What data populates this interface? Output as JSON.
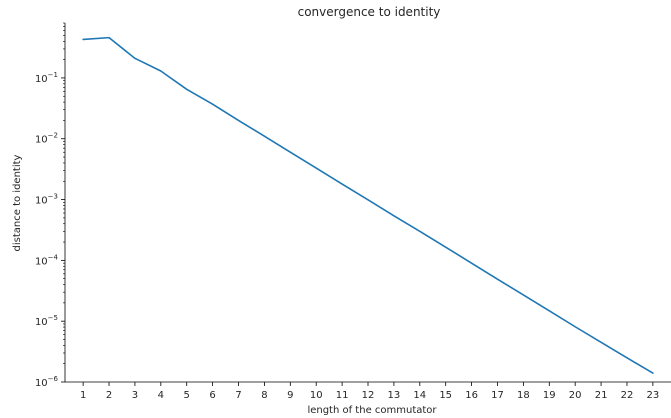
{
  "chart_data": {
    "type": "line",
    "title": "convergence to identity",
    "xlabel": "length of the commutator",
    "ylabel": "distance to identity",
    "yscale": "log",
    "ylim": [
      1e-06,
      0.8
    ],
    "xlim": [
      0.3,
      23.7
    ],
    "grid": false,
    "legend": "none",
    "x_ticks": [
      "1",
      "2",
      "3",
      "4",
      "5",
      "6",
      "7",
      "8",
      "9",
      "10",
      "11",
      "12",
      "13",
      "14",
      "15",
      "16",
      "17",
      "18",
      "19",
      "20",
      "21",
      "22",
      "23"
    ],
    "y_ticks": [
      {
        "value": 0.1,
        "base": "10",
        "exp": "−1"
      },
      {
        "value": 0.01,
        "base": "10",
        "exp": "−2"
      },
      {
        "value": 0.001,
        "base": "10",
        "exp": "−3"
      },
      {
        "value": 0.0001,
        "base": "10",
        "exp": "−4"
      },
      {
        "value": 1e-05,
        "base": "10",
        "exp": "−5"
      },
      {
        "value": 1e-06,
        "base": "10",
        "exp": "−6"
      }
    ],
    "series": [
      {
        "color": "#1f77b4",
        "x": [
          1,
          2,
          3,
          4,
          5,
          6,
          7,
          8,
          9,
          10,
          11,
          12,
          13,
          14,
          15,
          16,
          17,
          18,
          19,
          20,
          21,
          22,
          23
        ],
        "values": [
          0.43,
          0.46,
          0.21,
          0.13,
          0.065,
          0.037,
          0.02,
          0.011,
          0.006,
          0.0033,
          0.0018,
          0.00099,
          0.00054,
          0.0003,
          0.000165,
          9e-05,
          4.9e-05,
          2.7e-05,
          1.48e-05,
          8.1e-06,
          4.5e-06,
          2.5e-06,
          1.4e-06
        ]
      }
    ]
  }
}
